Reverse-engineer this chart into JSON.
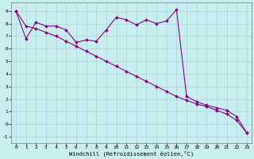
{
  "xlabel": "Windchill (Refroidissement éolien,°C)",
  "background_color": "#c8eef0",
  "grid_color": "#b0dde0",
  "line_color": "#880088",
  "xlim": [
    -0.5,
    23.5
  ],
  "ylim": [
    -1.5,
    9.7
  ],
  "xticks": [
    0,
    1,
    2,
    3,
    4,
    5,
    6,
    7,
    8,
    9,
    10,
    11,
    12,
    13,
    14,
    15,
    16,
    17,
    18,
    19,
    20,
    21,
    22,
    23
  ],
  "yticks": [
    -1,
    0,
    1,
    2,
    3,
    4,
    5,
    6,
    7,
    8,
    9
  ],
  "series1_x": [
    0,
    1,
    2,
    3,
    4,
    5,
    6,
    7,
    8,
    9,
    10,
    11,
    12,
    13,
    14,
    15,
    16,
    17,
    18,
    19,
    20,
    21,
    22,
    23
  ],
  "series1_y": [
    9.0,
    6.8,
    8.1,
    7.8,
    7.8,
    7.5,
    6.5,
    6.7,
    6.6,
    7.5,
    8.5,
    8.3,
    7.9,
    8.3,
    8.0,
    8.2,
    9.1,
    2.2,
    1.8,
    1.5,
    1.3,
    1.1,
    0.6,
    -0.7
  ],
  "series2_x": [
    0,
    1,
    2,
    3,
    4,
    5,
    6,
    7,
    8,
    9,
    10,
    11,
    12,
    13,
    14,
    15,
    16,
    17,
    18,
    19,
    20,
    21,
    22,
    23
  ],
  "series2_y": [
    9.0,
    7.8,
    7.6,
    7.3,
    7.0,
    6.6,
    6.2,
    5.8,
    5.4,
    5.0,
    4.6,
    4.2,
    3.8,
    3.4,
    3.0,
    2.6,
    2.2,
    1.9,
    1.6,
    1.4,
    1.1,
    0.8,
    0.3,
    -0.7
  ]
}
